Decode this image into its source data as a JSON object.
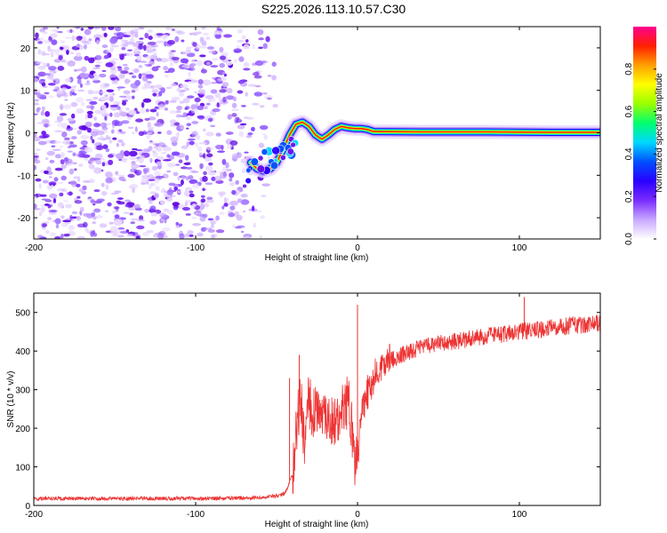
{
  "figure": {
    "title": "S225.2026.113.10.57.C30"
  },
  "chart_data": [
    {
      "type": "heatmap",
      "xlabel": "Height of straight line (km)",
      "ylabel": "Frequency (Hz)",
      "xlim": [
        -200,
        150
      ],
      "ylim": [
        -25,
        25
      ],
      "xticks": [
        -200,
        -100,
        0,
        100
      ],
      "yticks": [
        -20,
        -10,
        0,
        10,
        20
      ],
      "colorbar": {
        "label": "Normalized spectral amplitude",
        "range": [
          0,
          1
        ],
        "ticks": [
          0.0,
          0.2,
          0.4,
          0.6,
          0.8
        ],
        "tick_labels": [
          "0.0",
          "0.2",
          "0.4",
          "0.6",
          "0.8"
        ],
        "colors": [
          "#ffffff",
          "#c8a8ff",
          "#7a2cff",
          "#2a00ff",
          "#0050ff",
          "#00d8ff",
          "#00ff70",
          "#9aff00",
          "#ffff00",
          "#ffa000",
          "#ff2000",
          "#ff0090"
        ]
      },
      "signal_trace": {
        "x": [
          -66,
          -62,
          -58,
          -54,
          -50,
          -46,
          -42,
          -38,
          -34,
          -30,
          -26,
          -22,
          -18,
          -14,
          -10,
          -6,
          -2,
          2,
          6,
          10,
          40,
          80,
          120,
          150
        ],
        "y": [
          -7,
          -8.5,
          -9,
          -8.5,
          -7,
          -4,
          -0.5,
          2,
          2.5,
          1.5,
          -0.5,
          -1.5,
          -0.5,
          0.8,
          1.5,
          1.2,
          1.0,
          1.0,
          0.8,
          0.3,
          0.2,
          0.2,
          0.1,
          0.1
        ]
      }
    },
    {
      "type": "line",
      "xlabel": "Height of straight line (km)",
      "ylabel": "SNR (10 * v/v)",
      "xlim": [
        -200,
        150
      ],
      "ylim": [
        0,
        550
      ],
      "xticks": [
        -200,
        -100,
        0,
        100
      ],
      "yticks": [
        0,
        100,
        200,
        300,
        400,
        500
      ],
      "series": [
        {
          "name": "SNR",
          "color": "#ee3333",
          "x": [
            -200,
            -150,
            -100,
            -60,
            -50,
            -45,
            -40,
            -38,
            -35,
            -33,
            -30,
            -28,
            -25,
            -20,
            -15,
            -10,
            -5,
            -2,
            0,
            2,
            5,
            10,
            15,
            20,
            25,
            30,
            40,
            50,
            60,
            70,
            80,
            90,
            100,
            110,
            120,
            130,
            140,
            150
          ],
          "y": [
            18,
            18,
            18,
            20,
            25,
            30,
            80,
            180,
            300,
            150,
            280,
            230,
            260,
            240,
            210,
            250,
            270,
            120,
            115,
            220,
            280,
            330,
            360,
            375,
            385,
            395,
            410,
            420,
            425,
            432,
            438,
            443,
            450,
            455,
            460,
            465,
            468,
            473
          ]
        }
      ],
      "spikes": [
        {
          "x": -42,
          "y": 330
        },
        {
          "x": -36,
          "y": 390
        },
        {
          "x": 0,
          "y": 520
        },
        {
          "x": 103,
          "y": 540
        }
      ]
    }
  ]
}
